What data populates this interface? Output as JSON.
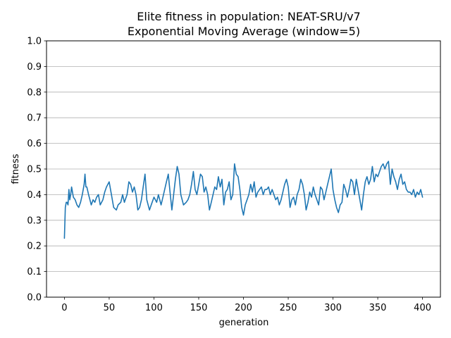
{
  "chart_data": {
    "type": "line",
    "title": "Elite fitness in population: NEAT-SRU/v7",
    "subtitle": "Exponential Moving Average (window=5)",
    "xlabel": "generation",
    "ylabel": "fitness",
    "xlim": [
      -20,
      420
    ],
    "ylim": [
      0.0,
      1.0
    ],
    "x_ticks": [
      0,
      50,
      100,
      150,
      200,
      250,
      300,
      350,
      400
    ],
    "y_ticks": [
      "0.0",
      "0.1",
      "0.2",
      "0.3",
      "0.4",
      "0.5",
      "0.6",
      "0.7",
      "0.8",
      "0.9",
      "1.0"
    ],
    "grid": "horizontal",
    "legend": "none",
    "colors": {
      "line": "#1f77b4",
      "grid": "#b0b0b0",
      "axes": "#000000"
    },
    "series": [
      {
        "x": [
          0,
          1,
          2,
          3,
          4,
          5,
          6,
          7,
          8,
          10,
          12,
          14,
          16,
          18,
          20,
          22,
          23,
          24,
          25,
          27,
          30,
          32,
          34,
          36,
          38,
          40,
          43,
          45,
          47,
          50,
          52,
          55,
          58,
          60,
          63,
          65,
          67,
          70,
          72,
          74,
          76,
          78,
          80,
          82,
          84,
          86,
          88,
          90,
          92,
          95,
          98,
          100,
          103,
          105,
          108,
          110,
          112,
          114,
          116,
          118,
          120,
          122,
          124,
          126,
          128,
          130,
          133,
          136,
          138,
          140,
          142,
          144,
          146,
          148,
          150,
          152,
          154,
          156,
          158,
          160,
          162,
          164,
          166,
          168,
          170,
          172,
          174,
          176,
          178,
          180,
          182,
          184,
          186,
          188,
          190,
          192,
          194,
          196,
          198,
          200,
          202,
          204,
          206,
          208,
          210,
          212,
          214,
          216,
          218,
          220,
          222,
          224,
          226,
          228,
          230,
          232,
          234,
          236,
          238,
          240,
          242,
          244,
          246,
          248,
          250,
          252,
          254,
          256,
          258,
          260,
          262,
          264,
          266,
          268,
          270,
          272,
          274,
          276,
          278,
          280,
          282,
          284,
          286,
          288,
          290,
          292,
          294,
          296,
          298,
          300,
          302,
          304,
          306,
          308,
          310,
          312,
          314,
          316,
          318,
          320,
          322,
          324,
          326,
          328,
          330,
          332,
          334,
          336,
          338,
          340,
          342,
          344,
          346,
          348,
          350,
          352,
          354,
          356,
          358,
          360,
          362,
          364,
          366,
          368,
          370,
          372,
          374,
          376,
          378,
          380,
          382,
          384,
          386,
          388,
          390,
          392,
          394,
          396,
          398,
          400
        ],
        "y": [
          0.23,
          0.35,
          0.37,
          0.37,
          0.36,
          0.42,
          0.38,
          0.4,
          0.43,
          0.39,
          0.38,
          0.36,
          0.35,
          0.37,
          0.4,
          0.44,
          0.48,
          0.43,
          0.43,
          0.4,
          0.36,
          0.38,
          0.37,
          0.39,
          0.4,
          0.36,
          0.38,
          0.41,
          0.43,
          0.45,
          0.41,
          0.35,
          0.34,
          0.36,
          0.37,
          0.4,
          0.37,
          0.4,
          0.45,
          0.44,
          0.41,
          0.43,
          0.4,
          0.34,
          0.35,
          0.38,
          0.43,
          0.48,
          0.38,
          0.34,
          0.37,
          0.39,
          0.37,
          0.4,
          0.36,
          0.39,
          0.42,
          0.45,
          0.48,
          0.41,
          0.34,
          0.4,
          0.46,
          0.51,
          0.48,
          0.4,
          0.36,
          0.37,
          0.38,
          0.4,
          0.44,
          0.49,
          0.42,
          0.4,
          0.44,
          0.48,
          0.47,
          0.41,
          0.43,
          0.4,
          0.34,
          0.37,
          0.4,
          0.43,
          0.42,
          0.47,
          0.43,
          0.46,
          0.36,
          0.41,
          0.42,
          0.45,
          0.38,
          0.4,
          0.52,
          0.48,
          0.47,
          0.42,
          0.35,
          0.32,
          0.36,
          0.38,
          0.4,
          0.44,
          0.41,
          0.45,
          0.39,
          0.41,
          0.42,
          0.43,
          0.4,
          0.42,
          0.42,
          0.43,
          0.4,
          0.42,
          0.4,
          0.38,
          0.39,
          0.36,
          0.38,
          0.41,
          0.44,
          0.46,
          0.43,
          0.35,
          0.38,
          0.39,
          0.36,
          0.4,
          0.42,
          0.46,
          0.44,
          0.4,
          0.34,
          0.37,
          0.41,
          0.39,
          0.43,
          0.4,
          0.38,
          0.36,
          0.43,
          0.42,
          0.38,
          0.41,
          0.44,
          0.47,
          0.5,
          0.42,
          0.38,
          0.35,
          0.33,
          0.36,
          0.37,
          0.44,
          0.42,
          0.39,
          0.42,
          0.46,
          0.45,
          0.4,
          0.46,
          0.42,
          0.38,
          0.34,
          0.4,
          0.45,
          0.47,
          0.44,
          0.46,
          0.51,
          0.45,
          0.48,
          0.47,
          0.49,
          0.51,
          0.52,
          0.5,
          0.52,
          0.53,
          0.44,
          0.5,
          0.47,
          0.45,
          0.42,
          0.46,
          0.48,
          0.44,
          0.45,
          0.42,
          0.41,
          0.41,
          0.4,
          0.42,
          0.39,
          0.41,
          0.4,
          0.42,
          0.39
        ]
      }
    ]
  }
}
